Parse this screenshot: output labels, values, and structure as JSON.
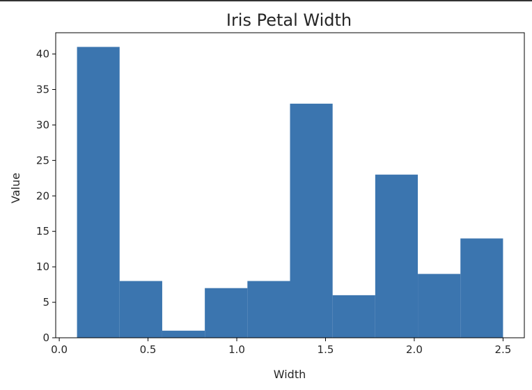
{
  "chart_data": {
    "type": "bar",
    "title": "Iris Petal Width",
    "xlabel": "Width",
    "ylabel": "Value",
    "bin_edges": [
      0.1,
      0.34,
      0.58,
      0.82,
      1.06,
      1.3,
      1.54,
      1.78,
      2.02,
      2.26,
      2.5
    ],
    "values": [
      41,
      8,
      1,
      7,
      8,
      33,
      6,
      23,
      9,
      14
    ],
    "xlim": [
      -0.02,
      2.62
    ],
    "ylim": [
      0,
      43
    ],
    "xticks": [
      0.0,
      0.5,
      1.0,
      1.5,
      2.0,
      2.5
    ],
    "xtick_labels": [
      "0.0",
      "0.5",
      "1.0",
      "1.5",
      "2.0",
      "2.5"
    ],
    "yticks": [
      0,
      5,
      10,
      15,
      20,
      25,
      30,
      35,
      40
    ],
    "ytick_labels": [
      "0",
      "5",
      "10",
      "15",
      "20",
      "25",
      "30",
      "35",
      "40"
    ],
    "bar_color": "#3b75af",
    "grid": false,
    "legend": "none"
  }
}
